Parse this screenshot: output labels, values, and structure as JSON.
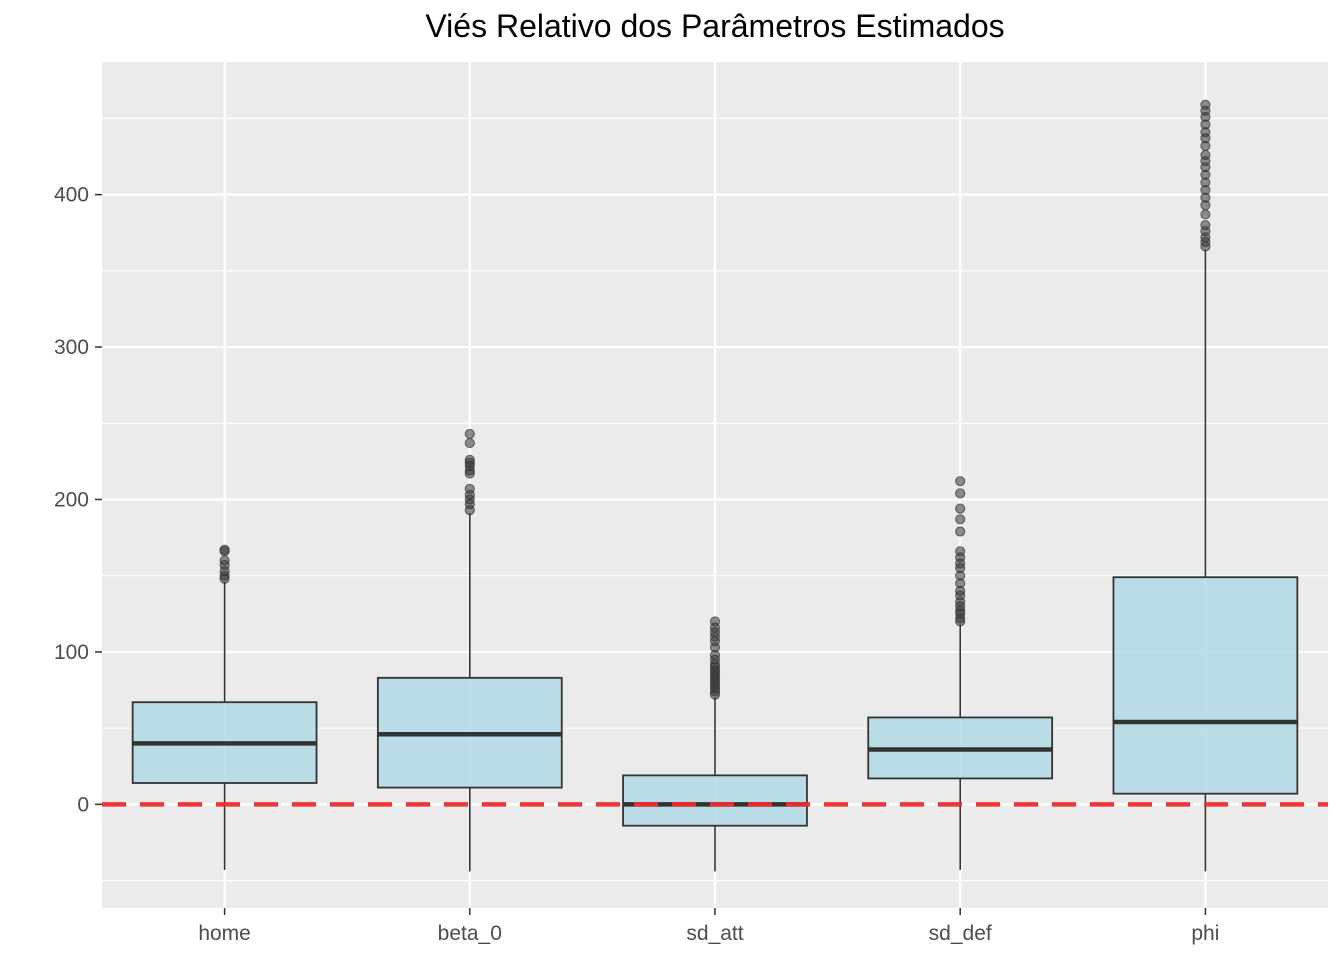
{
  "chart_data": {
    "type": "boxplot",
    "title": "Viés Relativo dos Parâmetros Estimados",
    "xlabel": "",
    "ylabel": "",
    "ylim": [
      -68,
      487
    ],
    "yticks": [
      0,
      100,
      200,
      300,
      400
    ],
    "grid": true,
    "reference_line": {
      "y": 0,
      "style": "dashed",
      "color": "#ee2c2c"
    },
    "colors": {
      "panel": "#ebebeb",
      "grid": "#ffffff",
      "box_fill": "#add8e6",
      "box_stroke": "#333333",
      "outlier": "#333333"
    },
    "categories": [
      "home",
      "beta_0",
      "sd_att",
      "sd_def",
      "phi"
    ],
    "boxes": [
      {
        "name": "home",
        "whisker_low": -43,
        "q1": 14,
        "median": 40,
        "q3": 67,
        "whisker_high": 146,
        "outliers": [
          148,
          150,
          153,
          157,
          160,
          166,
          167
        ]
      },
      {
        "name": "beta_0",
        "whisker_low": -44,
        "q1": 11,
        "median": 46,
        "q3": 83,
        "whisker_high": 191,
        "outliers": [
          193,
          197,
          200,
          203,
          207,
          217,
          219,
          222,
          224,
          226,
          237,
          243
        ]
      },
      {
        "name": "sd_att",
        "whisker_low": -44,
        "q1": -14,
        "median": 0,
        "q3": 19,
        "whisker_high": 70,
        "outliers": [
          72,
          74,
          76,
          78,
          80,
          82,
          84,
          86,
          88,
          90,
          92,
          95,
          98,
          103,
          107,
          110,
          113,
          116,
          120
        ]
      },
      {
        "name": "sd_def",
        "whisker_low": -43,
        "q1": 17,
        "median": 36,
        "q3": 57,
        "whisker_high": 118,
        "outliers": [
          120,
          122,
          125,
          127,
          130,
          133,
          137,
          140,
          145,
          150,
          155,
          158,
          162,
          166,
          179,
          187,
          194,
          204,
          212
        ]
      },
      {
        "name": "phi",
        "whisker_low": -44,
        "q1": 7,
        "median": 54,
        "q3": 149,
        "whisker_high": 364,
        "outliers": [
          366,
          369,
          372,
          376,
          380,
          387,
          393,
          398,
          403,
          408,
          413,
          418,
          422,
          426,
          432,
          437,
          441,
          446,
          451,
          455,
          459
        ]
      }
    ]
  }
}
